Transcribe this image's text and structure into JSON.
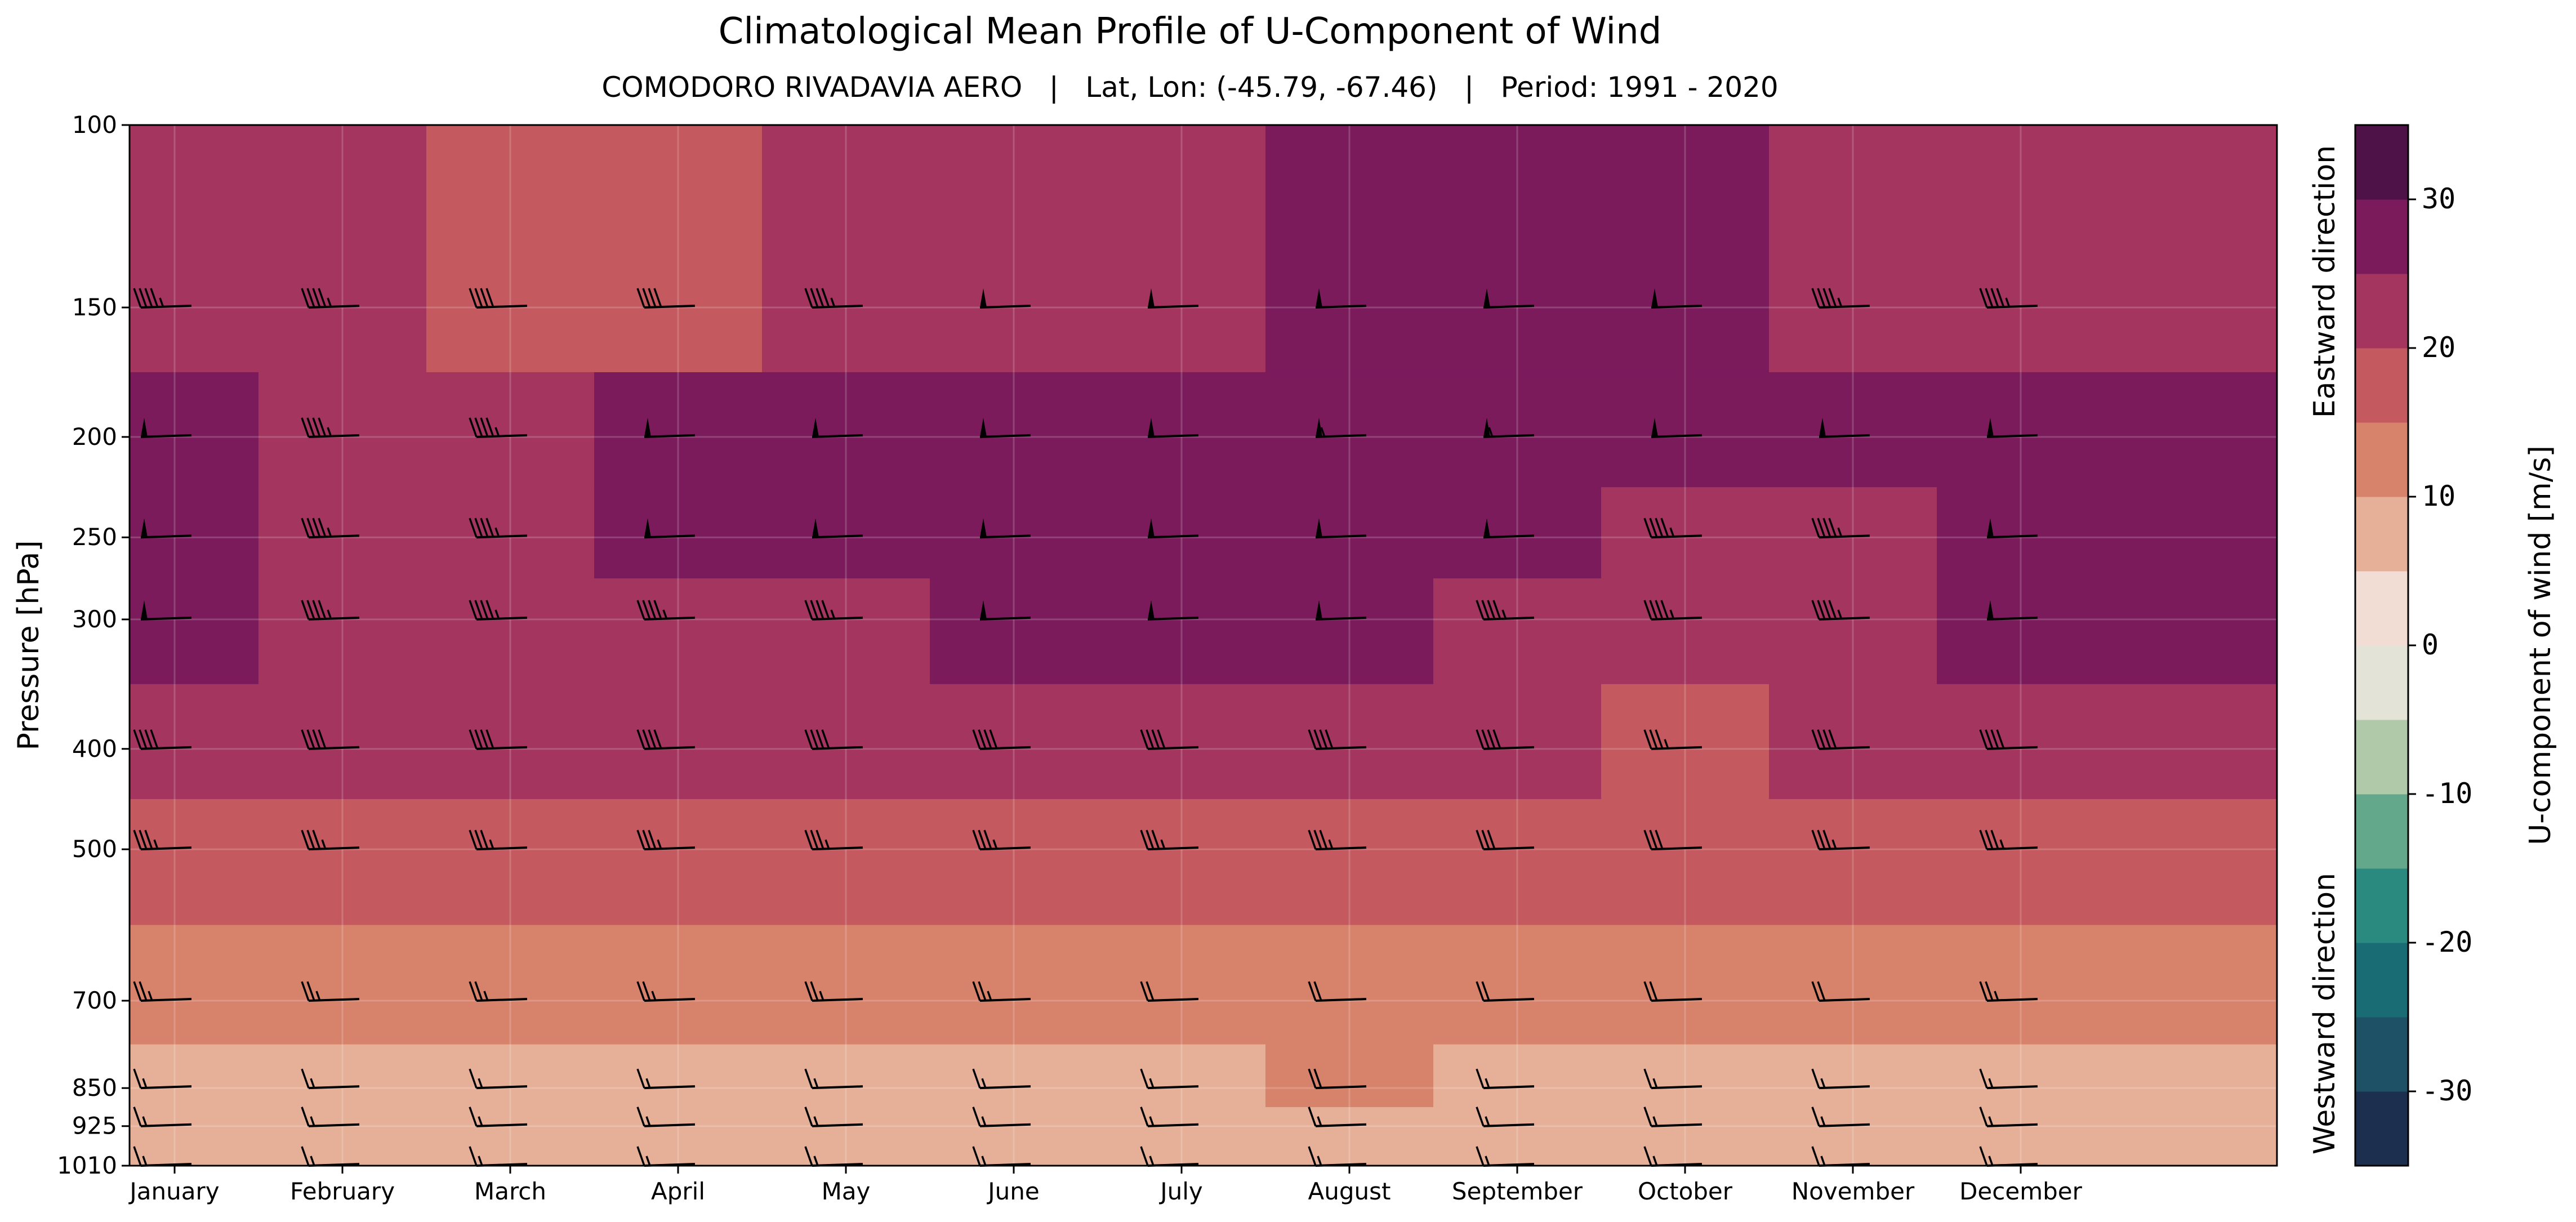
{
  "chart_data": {
    "type": "contour",
    "title": "Climatological Mean Profile of U-Component of Wind",
    "subtitle": "COMODORO RIVADAVIA AERO   |   Lat, Lon: (-45.79, -67.46)   |   Period: 1991 - 2020",
    "ylabel": "Pressure [hPa]",
    "y_scale": "log",
    "y_inverted": true,
    "grid": true,
    "months": [
      "January",
      "February",
      "March",
      "April",
      "May",
      "June",
      "July",
      "August",
      "September",
      "October",
      "November",
      "December"
    ],
    "pressure_ticks": [
      100,
      150,
      200,
      250,
      300,
      400,
      500,
      700,
      850,
      925,
      1010
    ],
    "pressure_levels": [
      150,
      200,
      250,
      300,
      400,
      500,
      700,
      850,
      925,
      1010
    ],
    "u_wind_ms": [
      [
        24,
        22,
        21,
        21,
        23,
        25,
        26,
        27,
        27,
        27,
        24,
        24
      ],
      [
        26,
        23,
        22,
        25,
        26,
        27,
        27,
        28,
        28,
        26,
        25,
        27
      ],
      [
        26,
        24,
        22,
        25,
        26,
        27,
        27,
        27,
        26,
        24,
        24,
        27
      ],
      [
        25,
        23,
        22,
        23,
        24,
        25,
        25,
        25,
        24,
        23,
        23,
        25
      ],
      [
        20,
        20,
        20,
        20,
        20,
        20,
        20,
        20,
        20,
        18,
        20,
        21
      ],
      [
        18,
        17,
        17,
        17,
        17,
        17,
        17,
        17,
        16,
        15,
        17,
        18
      ],
      [
        13,
        12,
        12,
        12,
        12,
        12,
        11,
        11,
        10,
        10,
        11,
        12
      ],
      [
        7,
        7,
        7,
        7,
        7,
        8,
        8,
        10,
        8,
        8,
        8,
        8
      ],
      [
        8,
        7,
        7,
        7,
        7,
        7,
        7,
        7,
        7,
        7,
        7,
        8
      ],
      [
        7,
        7,
        7,
        7,
        7,
        7,
        7,
        7,
        7,
        7,
        7,
        7
      ]
    ],
    "colorbar": {
      "label": "U-component of wind [m/s]",
      "ticks": [
        "-30",
        "-20",
        "-10",
        "0",
        "10",
        "20",
        "30"
      ],
      "range": [
        -35,
        35
      ],
      "step": 5,
      "top_label": "Eastward direction",
      "bottom_label": "Westward direction",
      "colors": [
        "#1d2f4f",
        "#1e5066",
        "#1a6c74",
        "#2a8a7f",
        "#63a88a",
        "#b0c9a8",
        "#e3e3d8",
        "#f1ddd3",
        "#e6b098",
        "#d7826b",
        "#c45a5f",
        "#a3355f",
        "#7b1b5c",
        "#4f1248"
      ]
    }
  }
}
